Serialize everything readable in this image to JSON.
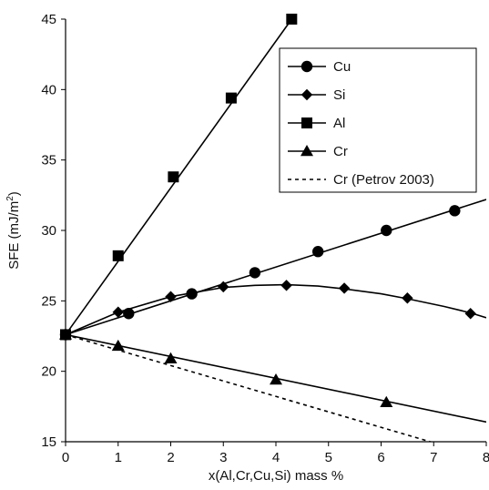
{
  "chart_data": {
    "type": "line",
    "xlabel": "x(Al,Cr,Cu,Si)  mass %",
    "ylabel_main": "SFE (mJ/m",
    "ylabel_sup": "2",
    "ylabel_end": ")",
    "xlim": [
      0,
      8
    ],
    "ylim": [
      15,
      45
    ],
    "x_ticks": [
      0,
      1,
      2,
      3,
      4,
      5,
      6,
      7,
      8
    ],
    "y_ticks": [
      15,
      20,
      25,
      30,
      35,
      40,
      45
    ],
    "grid": false,
    "legend_position": "top-right",
    "series": [
      {
        "name": "Cu",
        "marker": "circle",
        "line": "solid",
        "color": "#000000",
        "points": [
          [
            0,
            22.6
          ],
          [
            1.2,
            24.1
          ],
          [
            2.4,
            25.5
          ],
          [
            3.6,
            27.0
          ],
          [
            4.8,
            28.5
          ],
          [
            6.1,
            30.0
          ],
          [
            7.4,
            31.4
          ]
        ],
        "line_points": [
          [
            0,
            22.6
          ],
          [
            8,
            32.2
          ]
        ]
      },
      {
        "name": "Si",
        "marker": "diamond",
        "line": "solid",
        "color": "#000000",
        "points": [
          [
            0,
            22.6
          ],
          [
            1.0,
            24.2
          ],
          [
            2.0,
            25.3
          ],
          [
            3.0,
            26.0
          ],
          [
            4.2,
            26.1
          ],
          [
            5.3,
            25.9
          ],
          [
            6.5,
            25.2
          ],
          [
            7.7,
            24.1
          ]
        ],
        "line_points": [
          [
            0,
            22.6
          ],
          [
            1.0,
            24.2
          ],
          [
            2.0,
            25.3
          ],
          [
            3.0,
            25.95
          ],
          [
            3.6,
            26.1
          ],
          [
            4.2,
            26.15
          ],
          [
            4.8,
            26.05
          ],
          [
            5.3,
            25.85
          ],
          [
            6.0,
            25.5
          ],
          [
            6.5,
            25.15
          ],
          [
            7.2,
            24.6
          ],
          [
            7.7,
            24.15
          ],
          [
            8.0,
            23.8
          ]
        ]
      },
      {
        "name": "Al",
        "marker": "square",
        "line": "solid",
        "color": "#000000",
        "points": [
          [
            0,
            22.6
          ],
          [
            1.0,
            28.2
          ],
          [
            2.05,
            33.8
          ],
          [
            3.15,
            39.4
          ],
          [
            4.3,
            45.0
          ]
        ],
        "line_points": [
          [
            0,
            22.6
          ],
          [
            4.3,
            45.0
          ]
        ]
      },
      {
        "name": "Cr",
        "marker": "triangle",
        "line": "solid",
        "color": "#000000",
        "points": [
          [
            0,
            22.6
          ],
          [
            1.0,
            21.8
          ],
          [
            2.0,
            20.9
          ],
          [
            4.0,
            19.4
          ],
          [
            6.1,
            17.8
          ]
        ],
        "line_points": [
          [
            0,
            22.6
          ],
          [
            8,
            16.4
          ]
        ]
      },
      {
        "name": "Cr (Petrov 2003)",
        "marker": "none",
        "line": "dashed",
        "color": "#000000",
        "points": [],
        "line_points": [
          [
            0,
            22.6
          ],
          [
            7.3,
            14.6
          ]
        ]
      }
    ]
  }
}
